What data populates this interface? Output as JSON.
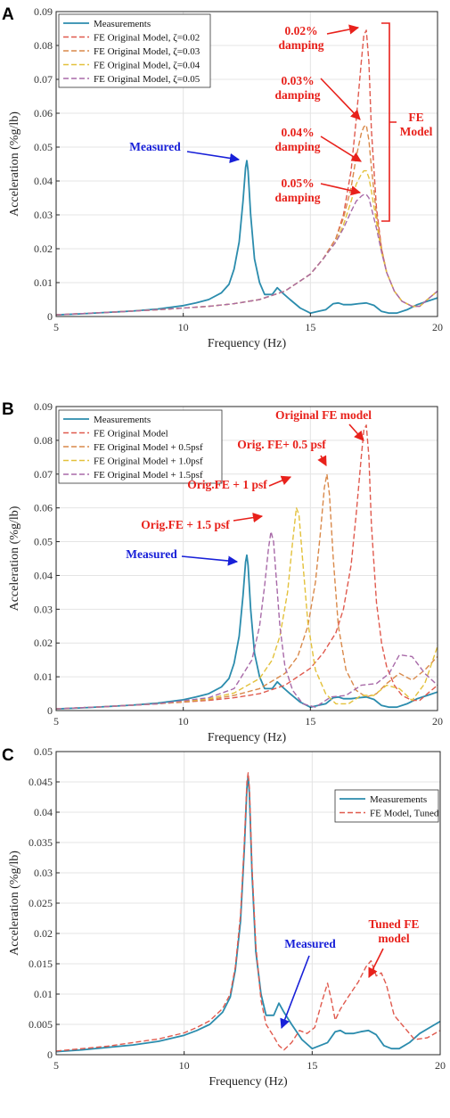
{
  "colors": {
    "measured": "#2b8cad",
    "fe_red": "#e05a4e",
    "fe_orange": "#d9894a",
    "fe_yellow": "#e3c13b",
    "fe_purple": "#a86aa8",
    "annot_red": "#e8211b",
    "annot_blue": "#1820d8"
  },
  "chart_data": [
    {
      "panel": "A",
      "type": "line",
      "xlabel": "Frequency (Hz)",
      "ylabel": "Acceleration (%g/lb)",
      "xlim": [
        5,
        20
      ],
      "ylim": [
        0,
        0.09
      ],
      "x_ticks": [
        "5",
        "10",
        "15",
        "20"
      ],
      "y_ticks": [
        "0",
        "0.01",
        "0.02",
        "0.03",
        "0.04",
        "0.05",
        "0.06",
        "0.07",
        "0.08",
        "0.09"
      ],
      "grid": true,
      "legend_position": "top-left",
      "series": [
        {
          "name": "Measurements",
          "style": "solid",
          "color_key": "measured",
          "x": [
            5,
            6,
            7,
            8,
            9,
            10,
            10.5,
            11,
            11.5,
            11.8,
            12,
            12.2,
            12.35,
            12.45,
            12.5,
            12.55,
            12.65,
            12.8,
            13,
            13.2,
            13.5,
            13.7,
            13.9,
            14.2,
            14.6,
            15,
            15.3,
            15.6,
            15.9,
            16.1,
            16.3,
            16.6,
            16.9,
            17.2,
            17.5,
            17.8,
            18.1,
            18.4,
            18.8,
            19.2,
            19.6,
            20
          ],
          "y": [
            0.0005,
            0.0008,
            0.0012,
            0.0016,
            0.0022,
            0.0032,
            0.004,
            0.005,
            0.007,
            0.0095,
            0.014,
            0.022,
            0.034,
            0.044,
            0.046,
            0.043,
            0.03,
            0.017,
            0.01,
            0.0065,
            0.0065,
            0.0085,
            0.007,
            0.005,
            0.0025,
            0.001,
            0.0015,
            0.002,
            0.0038,
            0.004,
            0.0035,
            0.0035,
            0.0038,
            0.004,
            0.0033,
            0.0015,
            0.001,
            0.001,
            0.002,
            0.0035,
            0.0045,
            0.0055
          ]
        },
        {
          "name": "FE Original Model, ζ=0.02",
          "style": "dashed",
          "color_key": "fe_red",
          "x": [
            5,
            7,
            9,
            11,
            12,
            13,
            14,
            15,
            15.5,
            16,
            16.3,
            16.6,
            16.8,
            17,
            17.1,
            17.2,
            17.3,
            17.4,
            17.6,
            17.8,
            18,
            18.3,
            18.6,
            19,
            19.3,
            19.6,
            20
          ],
          "y": [
            0.0005,
            0.0012,
            0.002,
            0.003,
            0.0038,
            0.005,
            0.0075,
            0.0125,
            0.017,
            0.023,
            0.03,
            0.043,
            0.058,
            0.075,
            0.083,
            0.0845,
            0.075,
            0.055,
            0.032,
            0.02,
            0.013,
            0.0075,
            0.0045,
            0.003,
            0.003,
            0.005,
            0.0075
          ]
        },
        {
          "name": "FE Original Model, ζ=0.03",
          "style": "dashed",
          "color_key": "fe_orange",
          "x": [
            5,
            7,
            9,
            11,
            12,
            13,
            14,
            15,
            15.5,
            16,
            16.3,
            16.6,
            16.8,
            17,
            17.1,
            17.2,
            17.3,
            17.4,
            17.6,
            17.8,
            18,
            18.3,
            18.6,
            19,
            19.3,
            19.6,
            20
          ],
          "y": [
            0.0005,
            0.0012,
            0.002,
            0.003,
            0.0038,
            0.005,
            0.0075,
            0.0125,
            0.017,
            0.023,
            0.029,
            0.038,
            0.047,
            0.054,
            0.056,
            0.0565,
            0.052,
            0.044,
            0.03,
            0.02,
            0.013,
            0.0075,
            0.0045,
            0.003,
            0.003,
            0.005,
            0.0075
          ]
        },
        {
          "name": "FE Original Model, ζ=0.04",
          "style": "dashed",
          "color_key": "fe_yellow",
          "x": [
            5,
            7,
            9,
            11,
            12,
            13,
            14,
            15,
            15.5,
            16,
            16.3,
            16.6,
            16.8,
            17,
            17.1,
            17.2,
            17.3,
            17.4,
            17.6,
            17.8,
            18,
            18.3,
            18.6,
            19,
            19.3,
            19.6,
            20
          ],
          "y": [
            0.0005,
            0.0012,
            0.002,
            0.003,
            0.0038,
            0.005,
            0.0075,
            0.0125,
            0.017,
            0.022,
            0.027,
            0.034,
            0.039,
            0.042,
            0.043,
            0.043,
            0.041,
            0.037,
            0.028,
            0.019,
            0.013,
            0.0075,
            0.0045,
            0.003,
            0.003,
            0.005,
            0.0075
          ]
        },
        {
          "name": "FE Original Model, ζ=0.05",
          "style": "dashed",
          "color_key": "fe_purple",
          "x": [
            5,
            7,
            9,
            11,
            12,
            13,
            14,
            15,
            15.5,
            16,
            16.3,
            16.6,
            16.8,
            17,
            17.1,
            17.2,
            17.3,
            17.4,
            17.6,
            17.8,
            18,
            18.3,
            18.6,
            19,
            19.3,
            19.6,
            20
          ],
          "y": [
            0.0005,
            0.0012,
            0.002,
            0.003,
            0.0038,
            0.005,
            0.0075,
            0.0125,
            0.017,
            0.022,
            0.026,
            0.031,
            0.034,
            0.0355,
            0.036,
            0.036,
            0.035,
            0.032,
            0.026,
            0.019,
            0.013,
            0.0075,
            0.0045,
            0.003,
            0.003,
            0.005,
            0.0075
          ]
        }
      ],
      "annotations": [
        {
          "lines": [
            "Measured"
          ],
          "color_key": "annot_blue"
        },
        {
          "lines": [
            "0.02%",
            "damping"
          ],
          "color_key": "annot_red"
        },
        {
          "lines": [
            "0.03%",
            "damping"
          ],
          "color_key": "annot_red"
        },
        {
          "lines": [
            "0.04%",
            "damping"
          ],
          "color_key": "annot_red"
        },
        {
          "lines": [
            "0.05%",
            "damping"
          ],
          "color_key": "annot_red"
        },
        {
          "lines": [
            "FE",
            "Model"
          ],
          "color_key": "annot_red"
        }
      ]
    },
    {
      "panel": "B",
      "type": "line",
      "xlabel": "Frequency (Hz)",
      "ylabel": "Acceleration (%g/lb)",
      "xlim": [
        5,
        20
      ],
      "ylim": [
        0,
        0.09
      ],
      "x_ticks": [
        "5",
        "10",
        "15",
        "20"
      ],
      "y_ticks": [
        "0",
        "0.01",
        "0.02",
        "0.03",
        "0.04",
        "0.05",
        "0.06",
        "0.07",
        "0.08",
        "0.09"
      ],
      "grid": true,
      "legend_position": "top-left",
      "series": [
        {
          "name": "Measurements",
          "style": "solid",
          "color_key": "measured",
          "x": [
            5,
            6,
            7,
            8,
            9,
            10,
            10.5,
            11,
            11.5,
            11.8,
            12,
            12.2,
            12.35,
            12.45,
            12.5,
            12.55,
            12.65,
            12.8,
            13,
            13.2,
            13.5,
            13.7,
            13.9,
            14.2,
            14.6,
            15,
            15.3,
            15.6,
            15.9,
            16.1,
            16.3,
            16.6,
            16.9,
            17.2,
            17.5,
            17.8,
            18.1,
            18.4,
            18.8,
            19.2,
            19.6,
            20
          ],
          "y": [
            0.0005,
            0.0008,
            0.0012,
            0.0016,
            0.0022,
            0.0032,
            0.004,
            0.005,
            0.007,
            0.0095,
            0.014,
            0.022,
            0.034,
            0.044,
            0.046,
            0.043,
            0.03,
            0.017,
            0.01,
            0.0065,
            0.0065,
            0.0085,
            0.007,
            0.005,
            0.0025,
            0.001,
            0.0015,
            0.002,
            0.0038,
            0.004,
            0.0035,
            0.0035,
            0.0038,
            0.004,
            0.0033,
            0.0015,
            0.001,
            0.001,
            0.002,
            0.0035,
            0.0045,
            0.0055
          ]
        },
        {
          "name": "FE Original Model",
          "style": "dashed",
          "color_key": "fe_red",
          "x": [
            5,
            7,
            9,
            11,
            12,
            13,
            14,
            15,
            15.5,
            16,
            16.3,
            16.6,
            16.8,
            17,
            17.1,
            17.2,
            17.3,
            17.4,
            17.6,
            17.8,
            18,
            18.3,
            18.6,
            19,
            19.3,
            19.6,
            20
          ],
          "y": [
            0.0005,
            0.0012,
            0.002,
            0.003,
            0.0038,
            0.005,
            0.0075,
            0.0125,
            0.017,
            0.023,
            0.03,
            0.043,
            0.058,
            0.075,
            0.083,
            0.0845,
            0.075,
            0.055,
            0.032,
            0.02,
            0.013,
            0.0075,
            0.0045,
            0.003,
            0.003,
            0.005,
            0.0075
          ]
        },
        {
          "name": "FE Original Model + 0.5psf",
          "style": "dashed",
          "color_key": "fe_orange",
          "x": [
            5,
            7,
            9,
            11,
            12,
            13,
            14,
            14.5,
            14.9,
            15.2,
            15.4,
            15.55,
            15.65,
            15.75,
            15.9,
            16.1,
            16.4,
            16.8,
            17.2,
            17.6,
            18,
            18.5,
            19,
            19.5,
            20
          ],
          "y": [
            0.0005,
            0.0012,
            0.002,
            0.0032,
            0.0045,
            0.0065,
            0.011,
            0.016,
            0.025,
            0.038,
            0.053,
            0.066,
            0.07,
            0.064,
            0.045,
            0.025,
            0.012,
            0.006,
            0.004,
            0.005,
            0.008,
            0.011,
            0.009,
            0.012,
            0.016
          ]
        },
        {
          "name": "FE Original Model + 1.0psf",
          "style": "dashed",
          "color_key": "fe_yellow",
          "x": [
            5,
            7,
            9,
            11,
            12,
            13,
            13.5,
            13.8,
            14.1,
            14.3,
            14.45,
            14.55,
            14.7,
            14.9,
            15.2,
            15.6,
            16,
            16.5,
            17,
            17.5,
            18,
            18.5,
            19,
            19.5,
            20
          ],
          "y": [
            0.0005,
            0.0012,
            0.002,
            0.0035,
            0.0052,
            0.0095,
            0.015,
            0.022,
            0.035,
            0.05,
            0.06,
            0.058,
            0.044,
            0.026,
            0.012,
            0.005,
            0.002,
            0.002,
            0.0045,
            0.0045,
            0.0075,
            0.0065,
            0.003,
            0.008,
            0.019
          ]
        },
        {
          "name": "FE Original Model + 1.5psf",
          "style": "dashed",
          "color_key": "fe_purple",
          "x": [
            5,
            7,
            9,
            11,
            12,
            12.7,
            13,
            13.2,
            13.35,
            13.45,
            13.55,
            13.65,
            13.8,
            14,
            14.3,
            14.7,
            15.2,
            15.8,
            16.4,
            17,
            17.6,
            18.1,
            18.5,
            19,
            19.5,
            20
          ],
          "y": [
            0.0005,
            0.0012,
            0.002,
            0.0038,
            0.0065,
            0.015,
            0.025,
            0.037,
            0.048,
            0.053,
            0.05,
            0.04,
            0.025,
            0.013,
            0.006,
            0.002,
            0.001,
            0.004,
            0.0045,
            0.0075,
            0.008,
            0.011,
            0.0165,
            0.016,
            0.011,
            0.0075
          ]
        }
      ],
      "annotations": [
        {
          "lines": [
            "Measured"
          ],
          "color_key": "annot_blue"
        },
        {
          "lines": [
            "Original FE model"
          ],
          "color_key": "annot_red"
        },
        {
          "lines": [
            "Orig. FE+ 0.5 psf"
          ],
          "color_key": "annot_red"
        },
        {
          "lines": [
            "Orig.FE + 1 psf"
          ],
          "color_key": "annot_red"
        },
        {
          "lines": [
            "Orig.FE + 1.5 psf"
          ],
          "color_key": "annot_red"
        }
      ]
    },
    {
      "panel": "C",
      "type": "line",
      "xlabel": "Frequency (Hz)",
      "ylabel": "Acceleration (%g/lb)",
      "xlim": [
        5,
        20
      ],
      "ylim": [
        0,
        0.05
      ],
      "x_ticks": [
        "5",
        "10",
        "15",
        "20"
      ],
      "y_ticks": [
        "0",
        "0.005",
        "0.01",
        "0.015",
        "0.02",
        "0.025",
        "0.03",
        "0.035",
        "0.04",
        "0.045",
        "0.05"
      ],
      "grid": true,
      "legend_position": "top-right",
      "series": [
        {
          "name": "Measurements",
          "style": "solid",
          "color_key": "measured",
          "x": [
            5,
            6,
            7,
            8,
            9,
            10,
            10.5,
            11,
            11.5,
            11.8,
            12,
            12.2,
            12.35,
            12.45,
            12.5,
            12.55,
            12.65,
            12.8,
            13,
            13.2,
            13.5,
            13.7,
            13.9,
            14.2,
            14.6,
            15,
            15.3,
            15.6,
            15.9,
            16.1,
            16.3,
            16.6,
            16.9,
            17.2,
            17.5,
            17.8,
            18.1,
            18.4,
            18.8,
            19.2,
            19.6,
            20
          ],
          "y": [
            0.0005,
            0.0008,
            0.0012,
            0.0016,
            0.0022,
            0.0032,
            0.004,
            0.005,
            0.007,
            0.0095,
            0.014,
            0.022,
            0.034,
            0.044,
            0.046,
            0.043,
            0.03,
            0.017,
            0.01,
            0.0065,
            0.0065,
            0.0085,
            0.007,
            0.005,
            0.0025,
            0.001,
            0.0015,
            0.002,
            0.0038,
            0.004,
            0.0035,
            0.0035,
            0.0038,
            0.004,
            0.0033,
            0.0015,
            0.001,
            0.001,
            0.002,
            0.0035,
            0.0045,
            0.0055
          ]
        },
        {
          "name": "FE Model, Tuned",
          "style": "dashed",
          "color_key": "fe_red",
          "x": [
            5,
            6,
            7,
            8,
            9,
            10,
            10.5,
            11,
            11.5,
            11.8,
            12,
            12.2,
            12.35,
            12.45,
            12.5,
            12.55,
            12.65,
            12.8,
            13,
            13.2,
            13.5,
            13.7,
            13.9,
            14.2,
            14.5,
            14.8,
            15.1,
            15.4,
            15.6,
            15.75,
            15.9,
            16.1,
            16.4,
            16.8,
            17.1,
            17.3,
            17.5,
            17.7,
            17.9,
            18.2,
            18.6,
            19,
            19.5,
            20
          ],
          "y": [
            0.0006,
            0.001,
            0.0014,
            0.002,
            0.0026,
            0.0036,
            0.0045,
            0.0056,
            0.0076,
            0.01,
            0.0145,
            0.023,
            0.035,
            0.045,
            0.0465,
            0.044,
            0.031,
            0.018,
            0.009,
            0.005,
            0.003,
            0.0015,
            0.0008,
            0.002,
            0.004,
            0.0035,
            0.0045,
            0.009,
            0.0118,
            0.009,
            0.0057,
            0.0075,
            0.0095,
            0.012,
            0.0145,
            0.0155,
            0.013,
            0.0135,
            0.0115,
            0.0065,
            0.0045,
            0.0025,
            0.0028,
            0.004
          ]
        }
      ],
      "annotations": [
        {
          "lines": [
            "Measured"
          ],
          "color_key": "annot_blue"
        },
        {
          "lines": [
            "Tuned FE",
            "model"
          ],
          "color_key": "annot_red"
        }
      ]
    }
  ]
}
